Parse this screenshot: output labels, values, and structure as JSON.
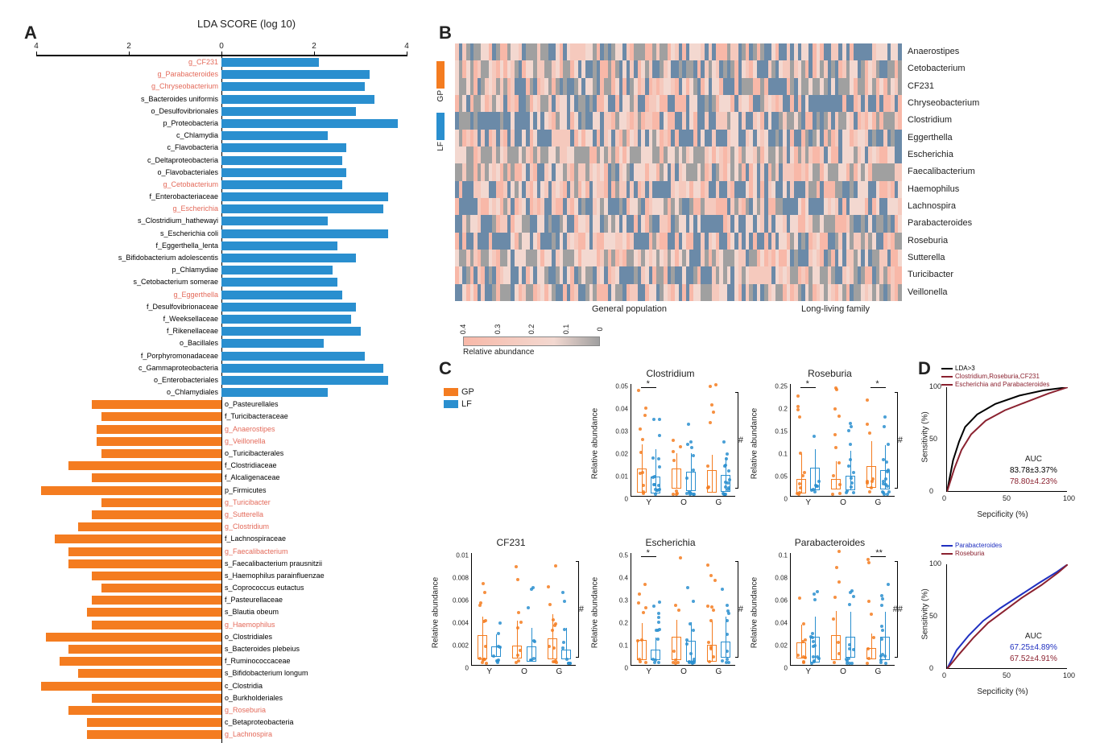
{
  "colors": {
    "gp": "#f47c20",
    "lf": "#2a8fcf",
    "gray": "#a0a0a0",
    "pink1": "#f8b8a8",
    "pink2": "#f5c9bd",
    "pink3": "#f3d8d0",
    "blueish": "#6b8aa8",
    "black": "#000000",
    "darkred": "#8b2230",
    "blue": "#2030c0",
    "red_label": "#e46a5a",
    "bg": "#ffffff"
  },
  "panel_labels": {
    "A": "A",
    "B": "B",
    "C": "C",
    "D": "D"
  },
  "panelA": {
    "title": "LDA SCORE (log 10)",
    "xmin": -4,
    "xmax": 4,
    "ticks": [
      -4,
      -2,
      0,
      2,
      4
    ],
    "items": [
      {
        "label": "g_CF231",
        "score": 2.1,
        "group": "LF",
        "hl": true
      },
      {
        "label": "g_Parabacteroides",
        "score": 3.2,
        "group": "LF",
        "hl": true
      },
      {
        "label": "g_Chryseobacterium",
        "score": 3.1,
        "group": "LF",
        "hl": true
      },
      {
        "label": "s_Bacteroides uniformis",
        "score": 3.3,
        "group": "LF",
        "hl": false
      },
      {
        "label": "o_Desulfovibrionales",
        "score": 2.9,
        "group": "LF",
        "hl": false
      },
      {
        "label": "p_Proteobacteria",
        "score": 3.8,
        "group": "LF",
        "hl": false
      },
      {
        "label": "c_Chlamydia",
        "score": 2.3,
        "group": "LF",
        "hl": false
      },
      {
        "label": "c_Flavobacteria",
        "score": 2.7,
        "group": "LF",
        "hl": false
      },
      {
        "label": "c_Deltaproteobacteria",
        "score": 2.6,
        "group": "LF",
        "hl": false
      },
      {
        "label": "o_Flavobacteriales",
        "score": 2.7,
        "group": "LF",
        "hl": false
      },
      {
        "label": "g_Cetobacterium",
        "score": 2.6,
        "group": "LF",
        "hl": true
      },
      {
        "label": "f_Enterobacteriaceae",
        "score": 3.6,
        "group": "LF",
        "hl": false
      },
      {
        "label": "g_Escherichia",
        "score": 3.5,
        "group": "LF",
        "hl": true
      },
      {
        "label": "s_Clostridium_hathewayi",
        "score": 2.3,
        "group": "LF",
        "hl": false
      },
      {
        "label": "s_Escherichia coli",
        "score": 3.6,
        "group": "LF",
        "hl": false
      },
      {
        "label": "f_Eggerthella_lenta",
        "score": 2.5,
        "group": "LF",
        "hl": false
      },
      {
        "label": "s_Bifidobacterium adolescentis",
        "score": 2.9,
        "group": "LF",
        "hl": false
      },
      {
        "label": "p_Chlamydiae",
        "score": 2.4,
        "group": "LF",
        "hl": false
      },
      {
        "label": "s_Cetobacterium somerae",
        "score": 2.5,
        "group": "LF",
        "hl": false
      },
      {
        "label": "g_Eggerthella",
        "score": 2.6,
        "group": "LF",
        "hl": true
      },
      {
        "label": "f_Desulfovibrionaceae",
        "score": 2.9,
        "group": "LF",
        "hl": false
      },
      {
        "label": "f_Weeksellaceae",
        "score": 2.8,
        "group": "LF",
        "hl": false
      },
      {
        "label": "f_Rikenellaceae",
        "score": 3.0,
        "group": "LF",
        "hl": false
      },
      {
        "label": "o_Bacillales",
        "score": 2.2,
        "group": "LF",
        "hl": false
      },
      {
        "label": "f_Porphyromonadaceae",
        "score": 3.1,
        "group": "LF",
        "hl": false
      },
      {
        "label": "c_Gammaproteobacteria",
        "score": 3.5,
        "group": "LF",
        "hl": false
      },
      {
        "label": "o_Enterobacteriales",
        "score": 3.6,
        "group": "LF",
        "hl": false
      },
      {
        "label": "o_Chlamydiales",
        "score": 2.3,
        "group": "LF",
        "hl": false
      },
      {
        "label": "o_Pasteurellales",
        "score": -2.8,
        "group": "GP",
        "hl": false
      },
      {
        "label": "f_Turicibacteraceae",
        "score": -2.6,
        "group": "GP",
        "hl": false
      },
      {
        "label": "g_Anaerostipes",
        "score": -2.7,
        "group": "GP",
        "hl": true
      },
      {
        "label": "g_Veillonella",
        "score": -2.7,
        "group": "GP",
        "hl": true
      },
      {
        "label": "o_Turicibacterales",
        "score": -2.6,
        "group": "GP",
        "hl": false
      },
      {
        "label": "f_Clostridiaceae",
        "score": -3.3,
        "group": "GP",
        "hl": false
      },
      {
        "label": "f_Alcaligenaceae",
        "score": -2.8,
        "group": "GP",
        "hl": false
      },
      {
        "label": "p_Firmicutes",
        "score": -3.9,
        "group": "GP",
        "hl": false
      },
      {
        "label": "g_Turicibacter",
        "score": -2.6,
        "group": "GP",
        "hl": true
      },
      {
        "label": "g_Sutterella",
        "score": -2.8,
        "group": "GP",
        "hl": true
      },
      {
        "label": "g_Clostridium",
        "score": -3.1,
        "group": "GP",
        "hl": true
      },
      {
        "label": "f_Lachnospiraceae",
        "score": -3.6,
        "group": "GP",
        "hl": false
      },
      {
        "label": "g_Faecalibacterium",
        "score": -3.3,
        "group": "GP",
        "hl": true
      },
      {
        "label": "s_Faecalibacterium prausnitzii",
        "score": -3.3,
        "group": "GP",
        "hl": false
      },
      {
        "label": "s_Haemophilus parainfluenzae",
        "score": -2.8,
        "group": "GP",
        "hl": false
      },
      {
        "label": "s_Coprococcus eutactus",
        "score": -2.6,
        "group": "GP",
        "hl": false
      },
      {
        "label": "f_Pasteurellaceae",
        "score": -2.8,
        "group": "GP",
        "hl": false
      },
      {
        "label": "s_Blautia obeum",
        "score": -2.9,
        "group": "GP",
        "hl": false
      },
      {
        "label": "g_Haemophilus",
        "score": -2.8,
        "group": "GP",
        "hl": true
      },
      {
        "label": "o_Clostridiales",
        "score": -3.8,
        "group": "GP",
        "hl": false
      },
      {
        "label": "s_Bacteroides plebeius",
        "score": -3.3,
        "group": "GP",
        "hl": false
      },
      {
        "label": "f_Ruminococcaceae",
        "score": -3.5,
        "group": "GP",
        "hl": false
      },
      {
        "label": "s_Bifidobacterium longum",
        "score": -3.1,
        "group": "GP",
        "hl": false
      },
      {
        "label": "c_Clostridia",
        "score": -3.9,
        "group": "GP",
        "hl": false
      },
      {
        "label": "o_Burkholderiales",
        "score": -2.8,
        "group": "GP",
        "hl": false
      },
      {
        "label": "g_Roseburia",
        "score": -3.3,
        "group": "GP",
        "hl": true
      },
      {
        "label": "c_Betaproteobacteria",
        "score": -2.9,
        "group": "GP",
        "hl": false
      },
      {
        "label": "g_Lachnospira",
        "score": -2.9,
        "group": "GP",
        "hl": true
      }
    ],
    "legend": [
      {
        "label": "GP",
        "color": "gp"
      },
      {
        "label": "LF",
        "color": "lf"
      }
    ]
  },
  "panelB": {
    "rows": [
      "Anaerostipes",
      "Cetobacterium",
      "CF231",
      "Chryseobacterium",
      "Clostridium",
      "Eggerthella",
      "Escherichia",
      "Faecalibacterium",
      "Haemophilus",
      "Lachnospira",
      "Parabacteroides",
      "Roseburia",
      "Sutterella",
      "Turicibacter",
      "Veillonella"
    ],
    "n_cols": 120,
    "group_split": 88,
    "group_labels": [
      "General population",
      "Long-living family"
    ],
    "colorbar_label": "Relative abundance",
    "colorbar_ticks": [
      "0.4",
      "0.3",
      "0.2",
      "0.1",
      "0"
    ],
    "seed": 13
  },
  "panelC": {
    "legend": [
      {
        "label": "GP",
        "color": "gp"
      },
      {
        "label": "LF",
        "color": "lf"
      }
    ],
    "ylabel": "Relative abundance",
    "xcats": [
      "Y",
      "O",
      "G"
    ],
    "plots": [
      {
        "title": "Clostridium",
        "pos": "r1c2",
        "ymax": 0.05,
        "yticks": [
          0,
          0.01,
          0.02,
          0.03,
          0.04,
          0.05
        ],
        "topsig": [
          {
            "at": 0,
            "txt": "*"
          }
        ],
        "sig": "#"
      },
      {
        "title": "Roseburia",
        "pos": "r1c3",
        "ymax": 0.25,
        "yticks": [
          0,
          0.05,
          0.1,
          0.15,
          0.2,
          0.25
        ],
        "topsig": [
          {
            "at": 0,
            "txt": "*"
          },
          {
            "at": 2,
            "txt": "*"
          }
        ],
        "sig": "#"
      },
      {
        "title": "CF231",
        "pos": "r2c1",
        "ymax": 0.01,
        "yticks": [
          0,
          0.002,
          0.004,
          0.006,
          0.008,
          0.01
        ],
        "topsig": [],
        "sig": "#"
      },
      {
        "title": "Escherichia",
        "pos": "r2c2",
        "ymax": 0.5,
        "yticks": [
          0,
          0.1,
          0.2,
          0.3,
          0.4,
          0.5
        ],
        "topsig": [
          {
            "at": 0,
            "txt": "*"
          }
        ],
        "sig": "#"
      },
      {
        "title": "Parabacteroides",
        "pos": "r2c3",
        "ymax": 0.1,
        "yticks": [
          0,
          0.02,
          0.04,
          0.06,
          0.08,
          0.1
        ],
        "topsig": [
          {
            "at": 2,
            "txt": "**"
          }
        ],
        "sig": "##"
      }
    ]
  },
  "panelD": {
    "ylabel": "Sensitivity (%)",
    "xlabel": "Sepcificity (%)",
    "ticks": [
      0,
      50,
      100
    ],
    "roc1": {
      "legend": [
        {
          "txt": "LDA>3",
          "color": "black"
        },
        {
          "txt": "Clostridium,Roseburia,CF231",
          "color": "darkred"
        },
        {
          "txt": "Escherichia and Parabacteroides",
          "color": "darkred"
        }
      ],
      "auc_label": "AUC",
      "auc": [
        {
          "txt": "83.78±3.37%",
          "color": "black"
        },
        {
          "txt": "78.80±4.23%",
          "color": "darkred"
        }
      ],
      "curves": [
        {
          "color": "black",
          "pts": [
            [
              0,
              0
            ],
            [
              5,
              30
            ],
            [
              10,
              48
            ],
            [
              15,
              62
            ],
            [
              25,
              74
            ],
            [
              40,
              84
            ],
            [
              60,
              92
            ],
            [
              80,
              97
            ],
            [
              100,
              100
            ]
          ]
        },
        {
          "color": "darkred",
          "pts": [
            [
              0,
              0
            ],
            [
              6,
              22
            ],
            [
              12,
              40
            ],
            [
              20,
              55
            ],
            [
              32,
              68
            ],
            [
              48,
              78
            ],
            [
              66,
              86
            ],
            [
              84,
              94
            ],
            [
              100,
              100
            ]
          ]
        }
      ]
    },
    "roc2": {
      "legend": [
        {
          "txt": "Parabacteroides",
          "color": "blue"
        },
        {
          "txt": "Roseburia",
          "color": "darkred"
        }
      ],
      "auc_label": "AUC",
      "auc": [
        {
          "txt": "67.25±4.89%",
          "color": "blue"
        },
        {
          "txt": "67.52±4.91%",
          "color": "darkred"
        }
      ],
      "curves": [
        {
          "color": "blue",
          "pts": [
            [
              0,
              0
            ],
            [
              8,
              18
            ],
            [
              18,
              32
            ],
            [
              30,
              46
            ],
            [
              44,
              58
            ],
            [
              60,
              70
            ],
            [
              76,
              82
            ],
            [
              90,
              92
            ],
            [
              100,
              100
            ]
          ]
        },
        {
          "color": "darkred",
          "pts": [
            [
              0,
              0
            ],
            [
              10,
              14
            ],
            [
              22,
              30
            ],
            [
              34,
              44
            ],
            [
              48,
              56
            ],
            [
              62,
              68
            ],
            [
              78,
              80
            ],
            [
              92,
              92
            ],
            [
              100,
              100
            ]
          ]
        }
      ]
    }
  }
}
